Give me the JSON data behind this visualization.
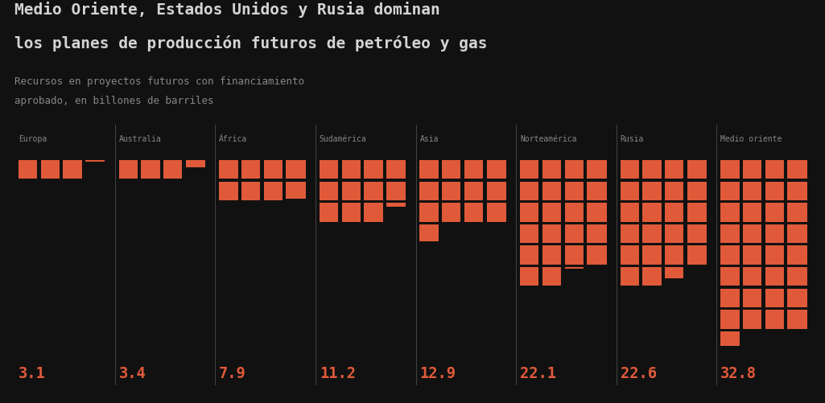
{
  "title_line1": "Medio Oriente, Estados Unidos y Rusia dominan",
  "title_line2": "los planes de producción futuros de petróleo y gas",
  "subtitle_line1": "Recursos en proyectos futuros con financiamiento",
  "subtitle_line2": "aprobado, en billones de barriles",
  "background_color": "#111111",
  "title_color": "#d4d4d4",
  "subtitle_color": "#888888",
  "region_label_color": "#888888",
  "value_color": "#e05a3a",
  "block_color": "#e05a3a",
  "block_edge_color": "#111111",
  "separator_color": "#444444",
  "regions": [
    "Europa",
    "Australia",
    "África",
    "Sudamérica",
    "Asia",
    "Norteamérica",
    "Rusia",
    "Medio oriente"
  ],
  "values": [
    3.1,
    3.4,
    7.9,
    11.2,
    12.9,
    22.1,
    22.6,
    32.8
  ],
  "n_cols": 4,
  "fig_width": 10.25,
  "fig_height": 5.02,
  "dpi": 100
}
